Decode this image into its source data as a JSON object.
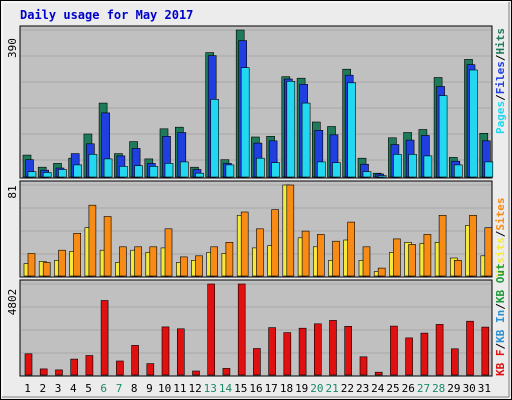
{
  "title": "Daily usage for May 2017",
  "colors": {
    "background": "#ececec",
    "plot_bg": "#c0c0c0",
    "title": "#0000cc",
    "hits": "#1f7a5a",
    "files": "#1f3fe0",
    "pages": "#22d8f0",
    "visits": "#f7e93a",
    "sites": "#f78b16",
    "kb_in": "#2b8fd0",
    "kb_out": "#1a9a3a",
    "kb_f": "#e01010",
    "weekend_label": "#1a8a6a",
    "weekday_label": "#000000"
  },
  "chart_data": [
    {
      "type": "bar",
      "title": "Daily usage for May 2017",
      "panel": "hits_files_pages",
      "ymax_label": "390",
      "ylim": [
        0,
        390
      ],
      "legend": [
        "Pages",
        "/",
        "Files",
        "/",
        "Hits"
      ],
      "categories": [
        "1",
        "2",
        "3",
        "4",
        "5",
        "6",
        "7",
        "8",
        "9",
        "10",
        "11",
        "12",
        "13",
        "14",
        "15",
        "16",
        "17",
        "18",
        "19",
        "20",
        "21",
        "22",
        "23",
        "24",
        "25",
        "26",
        "27",
        "28",
        "29",
        "30",
        "31"
      ],
      "weekend_days": [
        "6",
        "7",
        "13",
        "14",
        "20",
        "21",
        "27",
        "28"
      ],
      "series": [
        {
          "name": "Hits",
          "values": [
            58,
            26,
            36,
            50,
            114,
            196,
            62,
            94,
            48,
            128,
            132,
            26,
            330,
            46,
            390,
            106,
            108,
            266,
            262,
            146,
            134,
            286,
            50,
            10,
            104,
            118,
            126,
            264,
            52,
            312,
            116
          ]
        },
        {
          "name": "Files",
          "values": [
            46,
            18,
            24,
            62,
            88,
            170,
            56,
            76,
            36,
            108,
            118,
            20,
            322,
            36,
            362,
            90,
            96,
            260,
            246,
            124,
            112,
            270,
            34,
            8,
            86,
            98,
            110,
            240,
            42,
            298,
            96
          ]
        },
        {
          "name": "Pages",
          "values": [
            14,
            12,
            20,
            32,
            60,
            48,
            28,
            30,
            28,
            36,
            40,
            10,
            206,
            32,
            290,
            50,
            38,
            254,
            196,
            40,
            38,
            250,
            14,
            4,
            60,
            60,
            56,
            216,
            32,
            284,
            40
          ]
        }
      ]
    },
    {
      "type": "bar",
      "panel": "visits_sites",
      "ymax_label": "81",
      "ylim": [
        0,
        81
      ],
      "legend": [
        "Visits",
        "/",
        "Sites"
      ],
      "categories": [
        "1",
        "2",
        "3",
        "4",
        "5",
        "6",
        "7",
        "8",
        "9",
        "10",
        "11",
        "12",
        "13",
        "14",
        "15",
        "16",
        "17",
        "18",
        "19",
        "20",
        "21",
        "22",
        "23",
        "24",
        "25",
        "26",
        "27",
        "28",
        "29",
        "30",
        "31"
      ],
      "series": [
        {
          "name": "Visits",
          "values": [
            11,
            13,
            14,
            22,
            43,
            23,
            12,
            23,
            21,
            25,
            12,
            14,
            21,
            20,
            54,
            25,
            27,
            81,
            34,
            26,
            14,
            32,
            14,
            4,
            21,
            30,
            29,
            30,
            16,
            45,
            18
          ]
        },
        {
          "name": "Sites",
          "values": [
            20,
            12,
            23,
            38,
            63,
            53,
            26,
            26,
            26,
            42,
            17,
            18,
            26,
            30,
            57,
            42,
            59,
            81,
            40,
            37,
            31,
            48,
            26,
            7,
            33,
            28,
            37,
            54,
            14,
            54,
            43
          ]
        }
      ]
    },
    {
      "type": "bar",
      "panel": "kbytes",
      "ymax_label": "4802",
      "ylim": [
        0,
        4802
      ],
      "legend": [
        "KB F",
        "/",
        "KB In",
        "/",
        "KB Out"
      ],
      "categories": [
        "1",
        "2",
        "3",
        "4",
        "5",
        "6",
        "7",
        "8",
        "9",
        "10",
        "11",
        "12",
        "13",
        "14",
        "15",
        "16",
        "17",
        "18",
        "19",
        "20",
        "21",
        "22",
        "23",
        "24",
        "25",
        "26",
        "27",
        "28",
        "29",
        "30",
        "31"
      ],
      "series": [
        {
          "name": "KB F",
          "values": [
            1120,
            320,
            270,
            840,
            1030,
            3930,
            740,
            1560,
            600,
            2540,
            2440,
            210,
            4802,
            350,
            4802,
            1400,
            2500,
            2240,
            2470,
            2700,
            2880,
            2570,
            960,
            150,
            2580,
            1960,
            2210,
            2670,
            1380,
            2840,
            2530
          ]
        }
      ]
    }
  ]
}
